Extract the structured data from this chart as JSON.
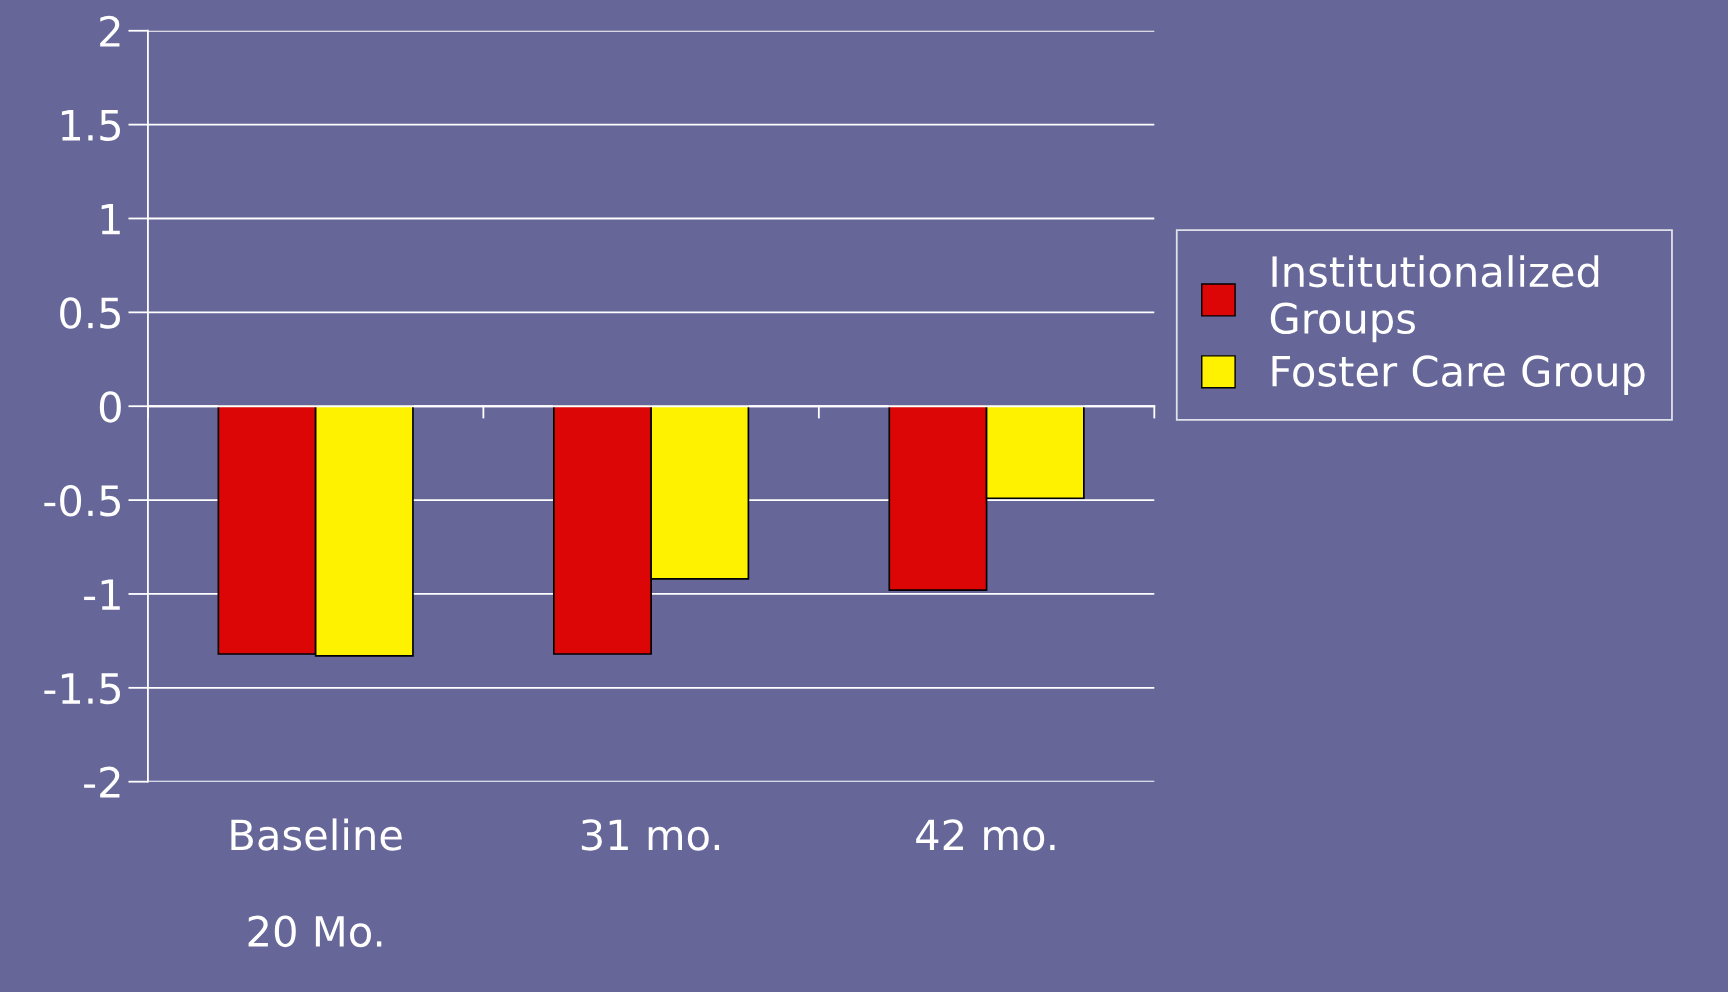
{
  "chart_data": {
    "type": "bar",
    "categories": [
      "Baseline\n\n20 Mo.",
      "31 mo.",
      "42 mo."
    ],
    "series": [
      {
        "name": "Institutionalized\nGroups",
        "color": "#dd0606",
        "values": [
          -1.32,
          -1.32,
          -0.98
        ]
      },
      {
        "name": "Foster Care Group",
        "color": "#fff200",
        "values": [
          -1.33,
          -0.92,
          -0.49
        ]
      }
    ],
    "ylim": [
      -2,
      2
    ],
    "yticks": [
      -2,
      -1.5,
      -1,
      -0.5,
      0,
      0.5,
      1,
      1.5,
      2
    ],
    "grid": "y",
    "legend": "right"
  }
}
